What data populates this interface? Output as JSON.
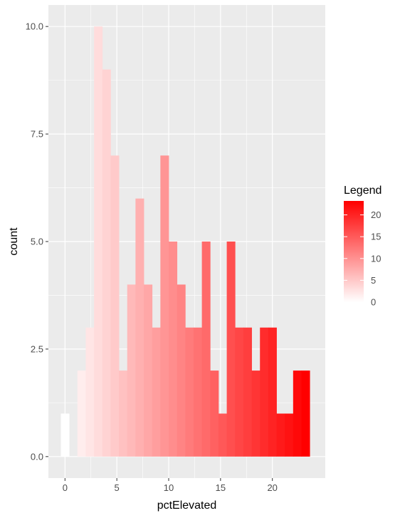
{
  "chart_data": {
    "type": "bar",
    "xlabel": "pctElevated",
    "ylabel": "count",
    "xlim": [
      -1.6,
      25.1
    ],
    "ylim": [
      -0.5,
      10.5
    ],
    "x_ticks": [
      0,
      5,
      10,
      15,
      20
    ],
    "y_ticks": [
      0.0,
      2.5,
      5.0,
      7.5,
      10.0
    ],
    "y_tick_labels": [
      "0.0",
      "2.5",
      "5.0",
      "7.5",
      "10.0"
    ],
    "bin_width": 0.8,
    "bins": [
      {
        "x": 0.0,
        "count": 1
      },
      {
        "x": 0.8,
        "count": 0
      },
      {
        "x": 1.6,
        "count": 2
      },
      {
        "x": 2.4,
        "count": 3
      },
      {
        "x": 3.2,
        "count": 10
      },
      {
        "x": 4.0,
        "count": 9
      },
      {
        "x": 4.8,
        "count": 7
      },
      {
        "x": 5.6,
        "count": 2
      },
      {
        "x": 6.4,
        "count": 4
      },
      {
        "x": 7.2,
        "count": 6
      },
      {
        "x": 8.0,
        "count": 4
      },
      {
        "x": 8.8,
        "count": 3
      },
      {
        "x": 9.6,
        "count": 7
      },
      {
        "x": 10.4,
        "count": 5
      },
      {
        "x": 11.2,
        "count": 4
      },
      {
        "x": 12.0,
        "count": 3
      },
      {
        "x": 12.8,
        "count": 3
      },
      {
        "x": 13.6,
        "count": 5
      },
      {
        "x": 14.4,
        "count": 2
      },
      {
        "x": 15.2,
        "count": 1
      },
      {
        "x": 16.0,
        "count": 5
      },
      {
        "x": 16.8,
        "count": 3
      },
      {
        "x": 17.6,
        "count": 3
      },
      {
        "x": 18.4,
        "count": 2
      },
      {
        "x": 19.2,
        "count": 3
      },
      {
        "x": 20.0,
        "count": 3
      },
      {
        "x": 20.8,
        "count": 1
      },
      {
        "x": 21.6,
        "count": 1
      },
      {
        "x": 22.4,
        "count": 2
      },
      {
        "x": 23.2,
        "count": 2
      }
    ],
    "fill_scale": {
      "low": "#ffffff",
      "high": "#ff0000",
      "domain": [
        0,
        23.2
      ]
    },
    "legend": {
      "title": "Legend",
      "breaks": [
        0,
        5,
        10,
        15,
        20
      ],
      "placement": "right"
    },
    "panel_background": "#ebebeb",
    "grid": true
  }
}
